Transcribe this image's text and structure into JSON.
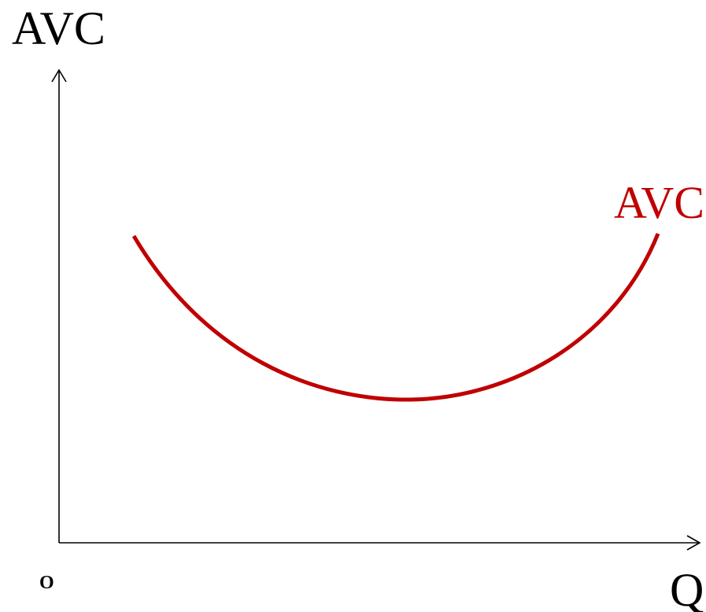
{
  "axes": {
    "y_label": "AVC",
    "x_label": "Q",
    "origin": "O"
  },
  "curve": {
    "label": "AVC"
  }
}
